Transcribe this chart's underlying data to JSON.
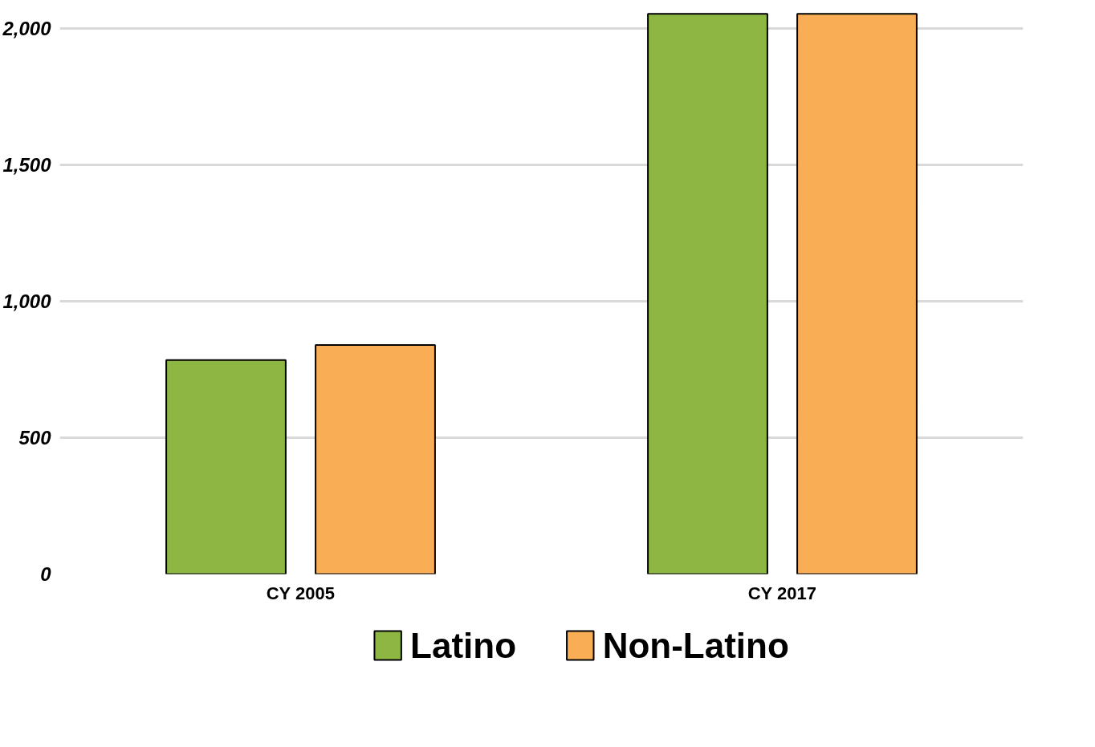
{
  "chart_data": {
    "type": "bar",
    "categories": [
      "CY 2005",
      "CY 2017"
    ],
    "series": [
      {
        "name": "Latino",
        "color": "#8db642",
        "values": [
          785,
          2055
        ]
      },
      {
        "name": "Non-Latino",
        "color": "#f9ad55",
        "values": [
          840,
          2055
        ]
      }
    ],
    "ylim": [
      0,
      2060
    ],
    "yticks": [
      0,
      500,
      {
        "value": 1000,
        "label": "1,000"
      },
      {
        "value": 1500,
        "label": "1,500"
      },
      {
        "value": 2000,
        "label": "2,000"
      }
    ],
    "grid": "y",
    "legend": "bottom"
  }
}
